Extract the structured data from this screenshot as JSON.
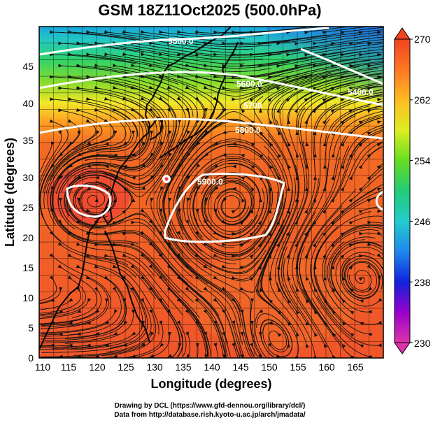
{
  "title": "GSM 18Z11Oct2025 (500.0hPa)",
  "axes": {
    "xlabel": "Longitude (degrees)",
    "ylabel": "Latitude  (degrees)",
    "xticks": [
      "110",
      "115",
      "120",
      "125",
      "130",
      "135",
      "140",
      "145",
      "150",
      "155",
      "160",
      "165"
    ],
    "yticks": [
      "0",
      "5",
      "10",
      "15",
      "20",
      "25",
      "30",
      "35",
      "40",
      "45"
    ],
    "xlim": [
      110,
      170
    ],
    "ylim": [
      0,
      50
    ]
  },
  "colorbar": {
    "ticks": [
      "270",
      "262",
      "254",
      "246",
      "238",
      "230"
    ],
    "range": [
      230,
      270
    ],
    "colors": [
      "#dd33aa",
      "#9900cc",
      "#1122dd",
      "#1e88ee",
      "#22cccc",
      "#22cc77",
      "#66dd22",
      "#ddee22",
      "#ffbb22",
      "#ff7722",
      "#f04422"
    ]
  },
  "contour_labels": [
    "5500.0",
    "5600.0",
    "5400.0",
    "5700",
    "5800.0",
    "5900.0"
  ],
  "credit": {
    "line1": "Drawing by DCL (https://www.gfd-dennou.org/library/dcl/)",
    "line2": "Data from http://database.rish.kyoto-u.ac.jp/arch/jmadata/"
  }
}
